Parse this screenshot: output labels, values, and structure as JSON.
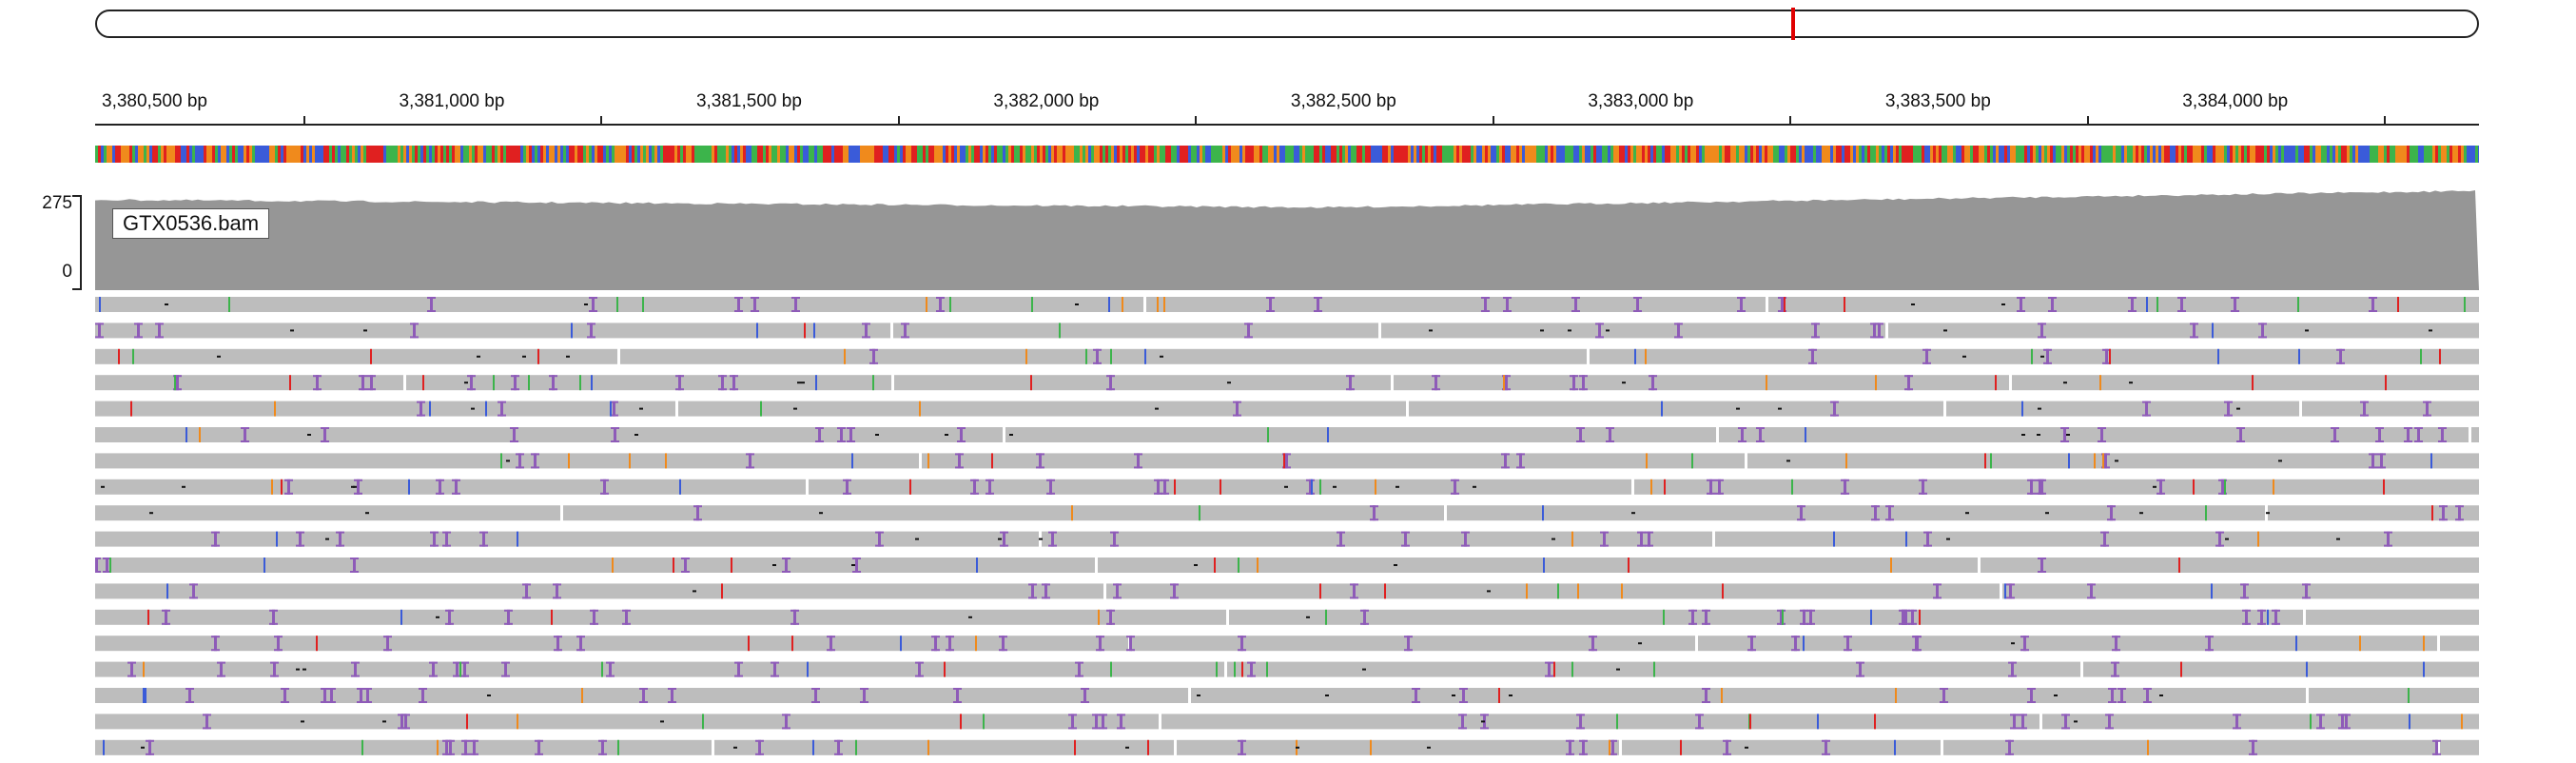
{
  "ideogram": {
    "marker_fraction": 0.752,
    "marker_color": "#e00000"
  },
  "ruler": {
    "ticks": [
      {
        "label": "3,380,500 bp",
        "bp": 3380500
      },
      {
        "label": "3,381,000 bp",
        "bp": 3381000
      },
      {
        "label": "3,381,500 bp",
        "bp": 3381500
      },
      {
        "label": "3,382,000 bp",
        "bp": 3382000
      },
      {
        "label": "3,382,500 bp",
        "bp": 3382500
      },
      {
        "label": "3,383,000 bp",
        "bp": 3383000
      },
      {
        "label": "3,383,500 bp",
        "bp": 3383500
      },
      {
        "label": "3,384,000 bp",
        "bp": 3384000
      }
    ],
    "minor_ticks_bp": [
      3380750,
      3381250,
      3381750,
      3382250,
      3382750,
      3383250,
      3383750,
      3384250
    ]
  },
  "coverage": {
    "track_name": "GTX0536.bam",
    "scale_max": "275",
    "scale_min": "0",
    "fill_color": "#969696"
  },
  "colors": {
    "A": "#3cb44b",
    "C": "#3a5bd9",
    "G": "#f08a1c",
    "T": "#e02020",
    "insertion": "#8e5bb8",
    "read": "#bdbdbd",
    "deletion": "#111111"
  }
}
